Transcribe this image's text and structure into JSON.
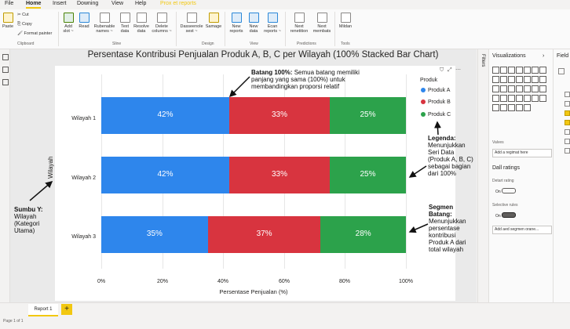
{
  "menu": {
    "tabs": [
      "File",
      "Home",
      "Insert",
      "Downing",
      "View",
      "Help",
      "Prox et reports"
    ],
    "active": "Home"
  },
  "ribbon": {
    "paste": "Paste",
    "cut": "Cut",
    "copy": "Copy",
    "format_painter": "Format painter",
    "clipboard": "Clipboard",
    "add_slot": [
      "Add",
      "slot ~"
    ],
    "read": "Read",
    "rubenable": [
      "Rubenable",
      "names ~"
    ],
    "text_data": [
      "Text",
      "data"
    ],
    "resolve_data": [
      "Resolve",
      "data"
    ],
    "delete_columns": [
      "Delete",
      "columns ~"
    ],
    "sline": "Sline",
    "dasseenole": [
      "Dasseenole",
      "sest ~"
    ],
    "samage": "Samage",
    "design": "Design",
    "new_reports": [
      "New",
      "reports"
    ],
    "new_data": [
      "New",
      "data"
    ],
    "ecan_reports": [
      "Ecan",
      "reports ~"
    ],
    "view": "View",
    "next_renetition": [
      "Next",
      "renetition"
    ],
    "next_membats": [
      "Next",
      "membats"
    ],
    "predictions": "Predictions",
    "mildan": "Mildan",
    "tools": "Tools"
  },
  "chart_data": {
    "type": "bar",
    "title": "Persentase Kontribusi Penjualan Produk A, B, C per Wilayah (100% Stacked Bar Chart)",
    "categories": [
      "Wilayah 1",
      "Wilayah 2",
      "Wilayah 3"
    ],
    "series": [
      {
        "name": "Produk A",
        "color": "#2e86ec",
        "values": [
          42,
          42,
          35
        ],
        "labels": [
          "42%",
          "42%",
          "35%"
        ]
      },
      {
        "name": "Produk B",
        "color": "#d8343f",
        "values": [
          33,
          33,
          37
        ],
        "labels": [
          "33%",
          "33%",
          "37%"
        ]
      },
      {
        "name": "Produk C",
        "color": "#2ca24b",
        "values": [
          25,
          25,
          28
        ],
        "labels": [
          "25%",
          "25%",
          "28%"
        ]
      }
    ],
    "xlabel": "Persentase Penjualan (%)",
    "ylabel": "Wilayah",
    "xlim": [
      0,
      100
    ],
    "xticks": [
      "0%",
      "20%",
      "40%",
      "60%",
      "80%",
      "100%"
    ],
    "legend_title": "Produk",
    "legend_position": "right"
  },
  "annotations": {
    "batang_bold": "Batang 100%:",
    "batang_text": " Semua batang memiliki panjang yang sama (100%) untuk membandingkan proporsi relatif",
    "legenda_bold": "Legenda:",
    "legenda_text": "Menunjukkan Seri Data (Produk A, B, C) sebagai bagian dari 100%",
    "sumbu_bold": "Sumbu Y:",
    "sumbu_text": "Wilayah (Kategori Utama)",
    "segmen_bold": "Segmen Batang:",
    "segmen_text": "Menunjukkan persentase kontribusi Produk A dari total wilayah"
  },
  "panes": {
    "filters": "Filters",
    "visualizations": "Visualizations",
    "fields": "Field",
    "values": "Valves",
    "add_field": "Add a regimat here",
    "drill_header": "Dall ratings",
    "detail_rating": "Detart rating",
    "on1": "On",
    "selective_rules": "Selective rules",
    "on2": "On",
    "add_segment": "Add aed segmen orane..."
  },
  "bottom": {
    "page_tab": "Report 1",
    "add": "+",
    "page_info": "Page 1 of 1"
  },
  "colors": {
    "accent": "#f2c811"
  }
}
